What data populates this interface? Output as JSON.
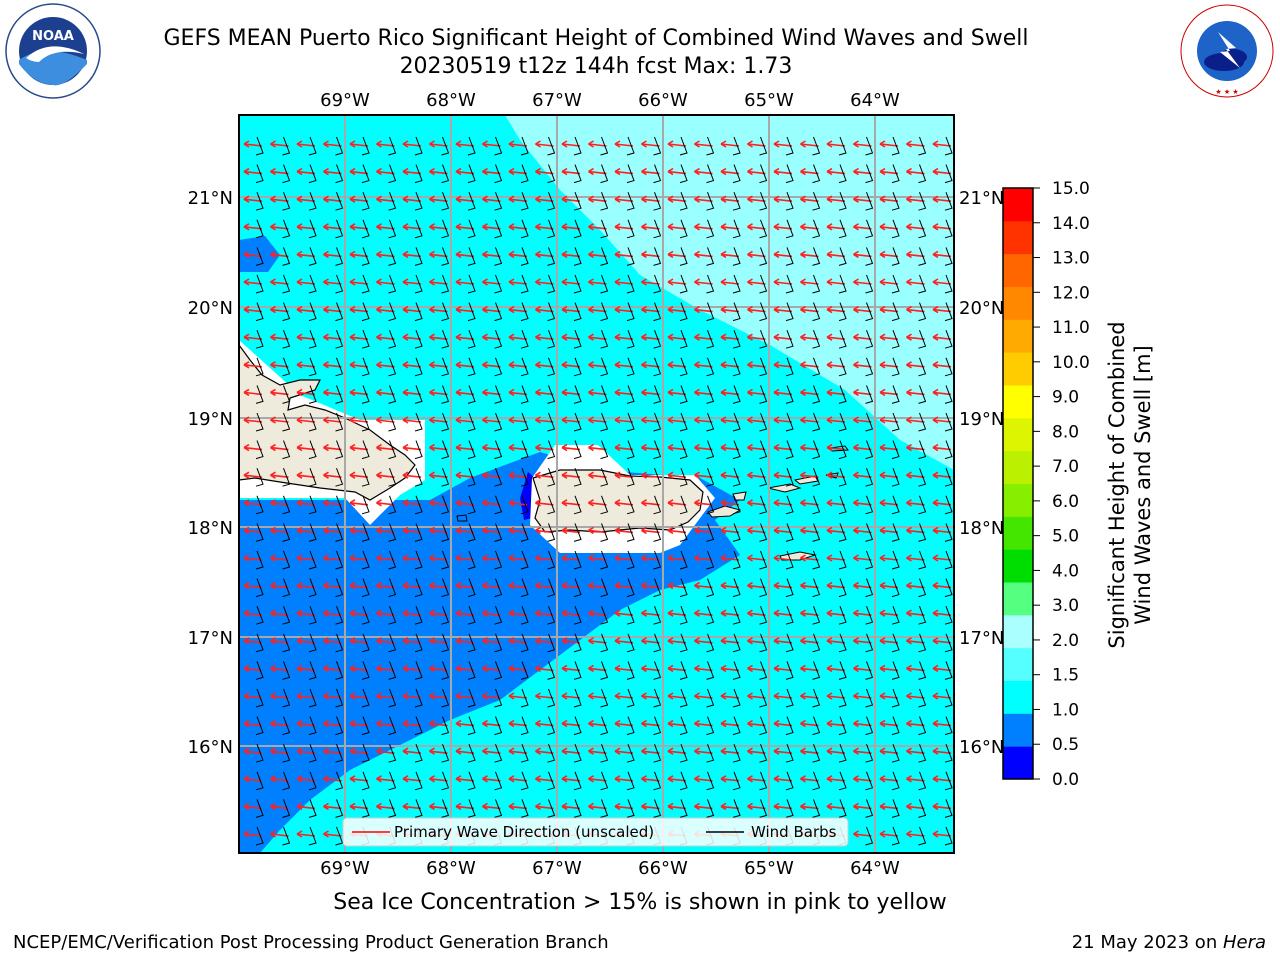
{
  "title": {
    "line1": "GEFS MEAN Puerto Rico Significant Height of Combined Wind Waves and Swell",
    "line2": "20230519 t12z 144h fcst   Max: 1.73"
  },
  "map": {
    "lon_labels": [
      "69°W",
      "68°W",
      "67°W",
      "66°W",
      "65°W",
      "64°W"
    ],
    "lat_labels": [
      "21°N",
      "20°N",
      "19°N",
      "18°N",
      "17°N",
      "16°N"
    ],
    "legend": {
      "wave_label": "Primary Wave Direction (unscaled)",
      "wind_label": "Wind Barbs",
      "wave_color": "#ff0000",
      "wind_color": "#000000"
    },
    "colors": {
      "ocean_main": "#00ffff",
      "ocean_light": "#99ffff",
      "ocean_band": "#0080ff",
      "ocean_dark": "#0000ff",
      "land": "#eeebdc"
    }
  },
  "colorbar": {
    "label_line1": "Significant Height of Combined",
    "label_line2": "Wind Waves and Swell [m]",
    "ticks": [
      "0.0",
      "0.5",
      "1.0",
      "1.5",
      "2.0",
      "3.0",
      "4.0",
      "5.0",
      "6.0",
      "7.0",
      "8.0",
      "9.0",
      "10.0",
      "11.0",
      "12.0",
      "13.0",
      "14.0",
      "15.0"
    ],
    "colors": [
      "#0000ff",
      "#0080ff",
      "#00ffff",
      "#55ffff",
      "#aaffff",
      "#55ff80",
      "#00dd00",
      "#44e600",
      "#88ee00",
      "#bbf000",
      "#ddf500",
      "#ffff00",
      "#ffcc00",
      "#ffaa00",
      "#ff8800",
      "#ff6600",
      "#ff3300",
      "#ff0000"
    ]
  },
  "subtitle": "Sea Ice Concentration > 15% is shown in pink to yellow",
  "footer": {
    "left": "NCEP/EMC/Verification Post Processing Product Generation Branch",
    "right_date": "21 May 2023 on ",
    "right_machine": "Hera"
  },
  "logos": {
    "noaa_text": "NOAA",
    "nws_text": "NATIONAL WEATHER SERVICE"
  }
}
